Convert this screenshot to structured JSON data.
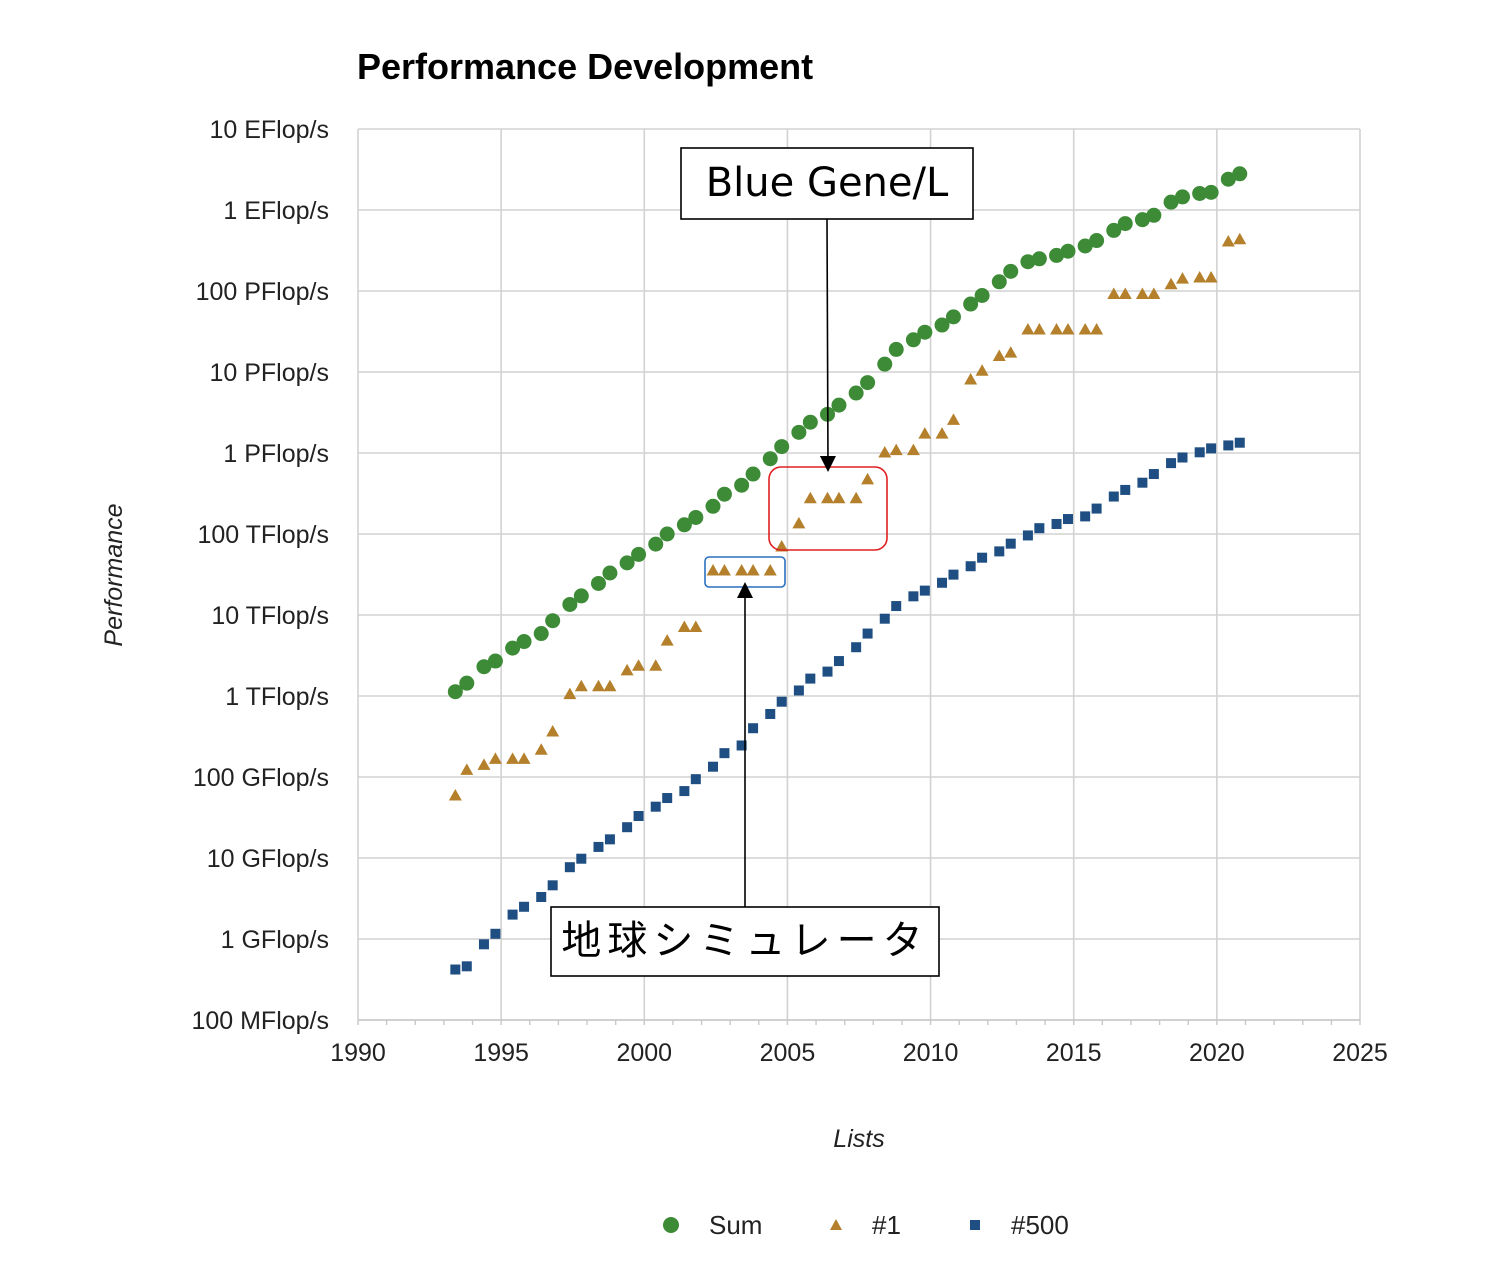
{
  "chart_data": {
    "type": "scatter",
    "title": "Performance Development",
    "xlabel": "Lists",
    "ylabel": "Performance",
    "xlim": [
      1990,
      2025
    ],
    "x_ticks": [
      "1990",
      "1995",
      "2000",
      "2005",
      "2010",
      "2015",
      "2020",
      "2025"
    ],
    "y_scale": "log",
    "ylim_flops": [
      100000000.0,
      1e+19
    ],
    "y_ticks": [
      "10 EFlop/s",
      "1 EFlop/s",
      "100 PFlop/s",
      "10 PFlop/s",
      "1 PFlop/s",
      "100 TFlop/s",
      "10 TFlop/s",
      "1 TFlop/s",
      "100 GFlop/s",
      "10 GFlop/s",
      "1 GFlop/s",
      "100 MFlop/s"
    ],
    "series": [
      {
        "name": "Sum",
        "marker": "circle",
        "color": "#3d8b37",
        "x": [
          1993.4,
          1993.8,
          1994.4,
          1994.8,
          1995.4,
          1995.8,
          1996.4,
          1996.8,
          1997.4,
          1997.8,
          1998.4,
          1998.8,
          1999.4,
          1999.8,
          2000.4,
          2000.8,
          2001.4,
          2001.8,
          2002.4,
          2002.8,
          2003.4,
          2003.8,
          2004.4,
          2004.8,
          2005.4,
          2005.8,
          2006.4,
          2006.8,
          2007.4,
          2007.8,
          2008.4,
          2008.8,
          2009.4,
          2009.8,
          2010.4,
          2010.8,
          2011.4,
          2011.8,
          2012.4,
          2012.8,
          2013.4,
          2013.8,
          2014.4,
          2014.8,
          2015.4,
          2015.8,
          2016.4,
          2016.8,
          2017.4,
          2017.8,
          2018.4,
          2018.8,
          2019.4,
          2019.8,
          2020.4,
          2020.8
        ],
        "y": [
          1130000000000.0,
          1440000000000.0,
          2300000000000.0,
          2700000000000.0,
          3900000000000.0,
          4700000000000.0,
          5900000000000.0,
          8500000000000.0,
          13500000000000.0,
          17200000000000.0,
          24500000000000.0,
          33000000000000.0,
          44000000000000.0,
          56000000000000.0,
          75000000000000.0,
          100000000000000.0,
          130000000000000.0,
          160000000000000.0,
          220000000000000.0,
          310000000000000.0,
          400000000000000.0,
          550000000000000.0,
          850000000000000.0,
          1200000000000000.0,
          1800000000000000.0,
          2400000000000000.0,
          3000000000000000.0,
          3900000000000000.0,
          5500000000000000.0,
          7400000000000000.0,
          1.25e+16,
          1.9e+16,
          2.5e+16,
          3.1e+16,
          3.8e+16,
          4.8e+16,
          6.9e+16,
          8.8e+16,
          1.3e+17,
          1.75e+17,
          2.3e+17,
          2.5e+17,
          2.75e+17,
          3.1e+17,
          3.6e+17,
          4.2e+17,
          5.6e+17,
          6.8e+17,
          7.6e+17,
          8.6e+17,
          1.25e+18,
          1.45e+18,
          1.6e+18,
          1.65e+18,
          2.4e+18,
          2.8e+18
        ]
      },
      {
        "name": "#1",
        "marker": "triangle",
        "color": "#b5802c",
        "x": [
          1993.4,
          1993.8,
          1994.4,
          1994.8,
          1995.4,
          1995.8,
          1996.4,
          1996.8,
          1997.4,
          1997.8,
          1998.4,
          1998.8,
          1999.4,
          1999.8,
          2000.4,
          2000.8,
          2001.4,
          2001.8,
          2002.4,
          2002.8,
          2003.4,
          2003.8,
          2004.4,
          2004.8,
          2005.4,
          2005.8,
          2006.4,
          2006.8,
          2007.4,
          2007.8,
          2008.4,
          2008.8,
          2009.4,
          2009.8,
          2010.4,
          2010.8,
          2011.4,
          2011.8,
          2012.4,
          2012.8,
          2013.4,
          2013.8,
          2014.4,
          2014.8,
          2015.4,
          2015.8,
          2016.4,
          2016.8,
          2017.4,
          2017.8,
          2018.4,
          2018.8,
          2019.4,
          2019.8,
          2020.4,
          2020.8
        ],
        "y": [
          60000000000.0,
          124000000000.0,
          143000000000.0,
          170000000000.0,
          170000000000.0,
          170000000000.0,
          220000000000.0,
          370000000000.0,
          1070000000000.0,
          1340000000000.0,
          1340000000000.0,
          1340000000000.0,
          2100000000000.0,
          2400000000000.0,
          2400000000000.0,
          4900000000000.0,
          7200000000000.0,
          7200000000000.0,
          36000000000000.0,
          36000000000000.0,
          36000000000000.0,
          36000000000000.0,
          36000000000000.0,
          71000000000000.0,
          137000000000000.0,
          280000000000000.0,
          280000000000000.0,
          280000000000000.0,
          280000000000000.0,
          480000000000000.0,
          1030000000000000.0,
          1100000000000000.0,
          1100000000000000.0,
          1760000000000000.0,
          1760000000000000.0,
          2600000000000000.0,
          8200000000000000.0,
          1.05e+16,
          1.6e+16,
          1.76e+16,
          3.4e+16,
          3.4e+16,
          3.4e+16,
          3.4e+16,
          3.4e+16,
          3.4e+16,
          9.3e+16,
          9.3e+16,
          9.3e+16,
          9.3e+16,
          1.23e+17,
          1.44e+17,
          1.49e+17,
          1.49e+17,
          4.15e+17,
          4.42e+17
        ]
      },
      {
        "name": "#500",
        "marker": "square",
        "color": "#1f4e82",
        "x": [
          1993.4,
          1993.8,
          1994.4,
          1994.8,
          1995.4,
          1995.8,
          1996.4,
          1996.8,
          1997.4,
          1997.8,
          1998.4,
          1998.8,
          1999.4,
          1999.8,
          2000.4,
          2000.8,
          2001.4,
          2001.8,
          2002.4,
          2002.8,
          2003.4,
          2003.8,
          2004.4,
          2004.8,
          2005.4,
          2005.8,
          2006.4,
          2006.8,
          2007.4,
          2007.8,
          2008.4,
          2008.8,
          2009.4,
          2009.8,
          2010.4,
          2010.8,
          2011.4,
          2011.8,
          2012.4,
          2012.8,
          2013.4,
          2013.8,
          2014.4,
          2014.8,
          2015.4,
          2015.8,
          2016.4,
          2016.8,
          2017.4,
          2017.8,
          2018.4,
          2018.8,
          2019.4,
          2019.8,
          2020.4,
          2020.8
        ],
        "y": [
          420000000.0,
          460000000.0,
          860000000.0,
          1160000000.0,
          2000000000.0,
          2500000000.0,
          3300000000.0,
          4600000000.0,
          7700000000.0,
          9800000000.0,
          13700000000.0,
          17000000000.0,
          24000000000.0,
          33000000000.0,
          43000000000.0,
          55000000000.0,
          67000000000.0,
          94000000000.0,
          134000000000.0,
          197000000000.0,
          245000000000.0,
          400000000000.0,
          600000000000.0,
          850000000000.0,
          1170000000000.0,
          1640000000000.0,
          2000000000000.0,
          2700000000000.0,
          4000000000000.0,
          5900000000000.0,
          9000000000000.0,
          12900000000000.0,
          17000000000000.0,
          20000000000000.0,
          25000000000000.0,
          31500000000000.0,
          40000000000000.0,
          51000000000000.0,
          61000000000000.0,
          76000000000000.0,
          96000000000000.0,
          118000000000000.0,
          133000000000000.0,
          153000000000000.0,
          165000000000000.0,
          206000000000000.0,
          290000000000000.0,
          350000000000000.0,
          430000000000000.0,
          550000000000000.0,
          750000000000000.0,
          880000000000000.0,
          1020000000000000.0,
          1140000000000000.0,
          1240000000000000.0,
          1340000000000000.0
        ]
      }
    ],
    "legend": [
      "Sum",
      "#1",
      "#500"
    ],
    "legend_position": "bottom",
    "annotations": [
      {
        "text": "Blue Gene/L",
        "target_x": 2006.4,
        "target_y": 800000000000000.0,
        "box_color": "#e02020"
      },
      {
        "text": "地球シミュレータ",
        "target_x": 2003.5,
        "target_y": 26000000000000.0,
        "box_color": "#2a6fbf"
      }
    ]
  }
}
